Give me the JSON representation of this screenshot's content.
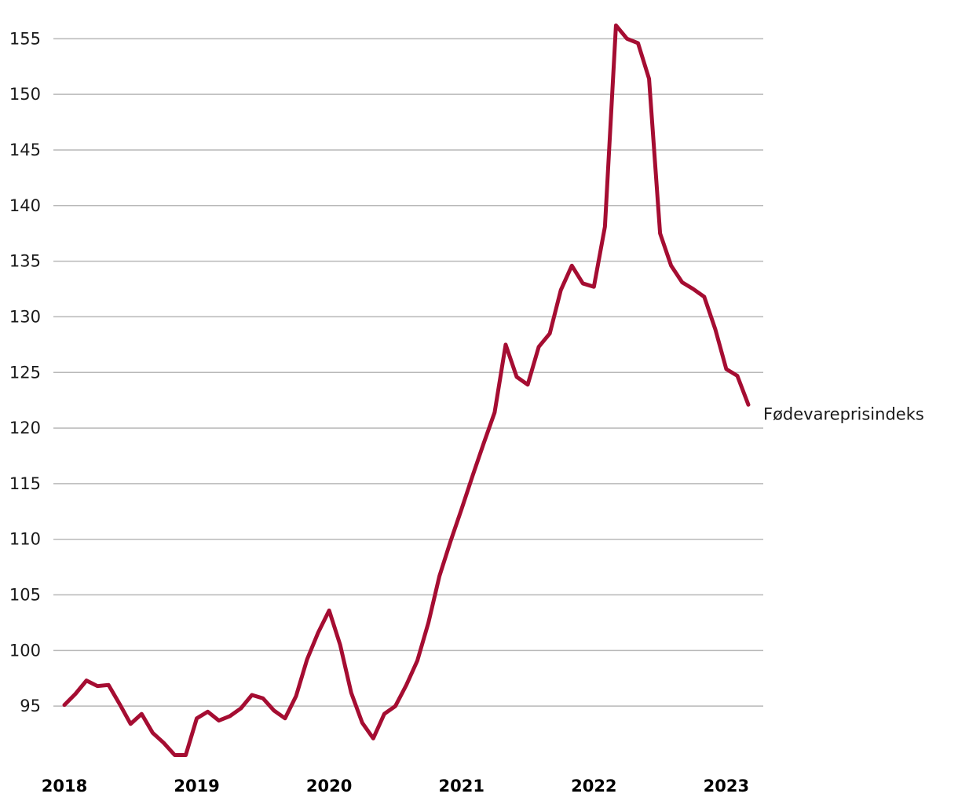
{
  "chart_data": {
    "type": "line",
    "title": "",
    "xlabel": "",
    "ylabel": "",
    "ylim": [
      90,
      157
    ],
    "xlim": [
      "2018-01",
      "2023-03"
    ],
    "grid": true,
    "y_ticks": [
      "95",
      "100",
      "105",
      "110",
      "115",
      "120",
      "125",
      "130",
      "135",
      "140",
      "145",
      "150",
      "155"
    ],
    "x_ticks": [
      "2018",
      "2019",
      "2020",
      "2021",
      "2022",
      "2023"
    ],
    "x_tick_dates": [
      "2018-01",
      "2019-01",
      "2020-01",
      "2021-01",
      "2022-01",
      "2023-01"
    ],
    "colors": {
      "series": "#a50d32",
      "grid": "#b8b8b8"
    },
    "series": [
      {
        "name": "Fødevareprisindeks",
        "x": [
          "2018-01",
          "2018-02",
          "2018-03",
          "2018-04",
          "2018-05",
          "2018-06",
          "2018-07",
          "2018-08",
          "2018-09",
          "2018-10",
          "2018-11",
          "2018-12",
          "2019-01",
          "2019-02",
          "2019-03",
          "2019-04",
          "2019-05",
          "2019-06",
          "2019-07",
          "2019-08",
          "2019-09",
          "2019-10",
          "2019-11",
          "2019-12",
          "2020-01",
          "2020-02",
          "2020-03",
          "2020-04",
          "2020-05",
          "2020-06",
          "2020-07",
          "2020-08",
          "2020-09",
          "2020-10",
          "2020-11",
          "2020-12",
          "2021-01",
          "2021-02",
          "2021-03",
          "2021-04",
          "2021-05",
          "2021-06",
          "2021-07",
          "2021-08",
          "2021-09",
          "2021-10",
          "2021-11",
          "2021-12",
          "2022-01",
          "2022-02",
          "2022-03",
          "2022-04",
          "2022-05",
          "2022-06",
          "2022-07",
          "2022-08",
          "2022-09",
          "2022-10",
          "2022-11",
          "2022-12",
          "2023-01",
          "2023-02",
          "2023-03"
        ],
        "values": [
          95.1,
          96.1,
          97.3,
          96.8,
          96.9,
          95.2,
          93.4,
          94.3,
          92.6,
          91.7,
          90.6,
          90.6,
          93.9,
          94.5,
          93.7,
          94.1,
          94.8,
          96.0,
          95.7,
          94.6,
          93.9,
          95.9,
          99.2,
          101.6,
          103.6,
          100.5,
          96.2,
          93.5,
          92.1,
          94.3,
          95.0,
          96.9,
          99.1,
          102.5,
          106.7,
          109.8,
          112.7,
          115.7,
          118.6,
          121.4,
          127.5,
          124.6,
          123.9,
          127.3,
          128.5,
          132.4,
          134.6,
          133.0,
          132.7,
          138.1,
          156.2,
          155.0,
          154.6,
          151.4,
          137.5,
          134.6,
          133.1,
          132.5,
          131.8,
          128.9,
          125.3,
          124.7,
          122.1
        ]
      }
    ]
  }
}
